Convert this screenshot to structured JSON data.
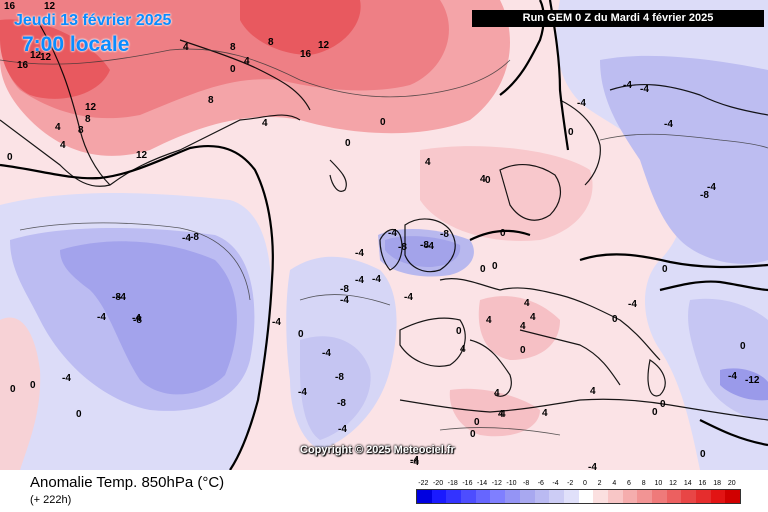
{
  "header": {
    "date": "Jeudi 13 février 2025",
    "time": "7:00 locale",
    "run": "Run GEM 0 Z du Mardi 4 février 2025"
  },
  "copyright": "Copyright © 2025 Meteociel.fr",
  "footer": {
    "parameter": "Anomalie Temp. 850hPa (°C)",
    "lead_time": "(+ 222h)"
  },
  "legend": {
    "labels": [
      "-22",
      "-20",
      "-18",
      "-16",
      "-14",
      "-12",
      "-10",
      "-8",
      "-6",
      "-4",
      "-2",
      "0",
      "2",
      "4",
      "6",
      "8",
      "10",
      "12",
      "14",
      "16",
      "18",
      "20"
    ],
    "colors": [
      "#0000e0",
      "#1a1aff",
      "#3333ff",
      "#4d4dff",
      "#6666ff",
      "#7f7fff",
      "#9494f5",
      "#a8a8f0",
      "#babaf2",
      "#ccccf5",
      "#e0e0fa",
      "#ffffff",
      "#fbe0e0",
      "#f8c6c6",
      "#f5adad",
      "#f29494",
      "#ef7a7a",
      "#ec6060",
      "#e84646",
      "#e52d2d",
      "#e21414",
      "#d00000"
    ]
  },
  "contour_labels": [
    {
      "text": "16"
    },
    {
      "text": "12"
    },
    {
      "text": "12"
    },
    {
      "text": "16"
    },
    {
      "text": "12"
    },
    {
      "text": "12"
    },
    {
      "text": "8"
    },
    {
      "text": "8"
    },
    {
      "text": "4"
    },
    {
      "text": "4"
    },
    {
      "text": "0"
    },
    {
      "text": "8"
    },
    {
      "text": "12"
    },
    {
      "text": "16"
    },
    {
      "text": "4"
    },
    {
      "text": "8"
    },
    {
      "text": "8"
    },
    {
      "text": "12"
    },
    {
      "text": "0"
    },
    {
      "text": "4"
    },
    {
      "text": "0"
    },
    {
      "text": "0"
    },
    {
      "text": "0"
    },
    {
      "text": "4"
    },
    {
      "text": "-4"
    },
    {
      "text": "-4"
    },
    {
      "text": "-4"
    },
    {
      "text": "-4"
    },
    {
      "text": "-8"
    },
    {
      "text": "-8"
    },
    {
      "text": "-8"
    },
    {
      "text": "-4"
    },
    {
      "text": "-8"
    },
    {
      "text": "-4"
    },
    {
      "text": "-4"
    },
    {
      "text": "-8"
    },
    {
      "text": "-8"
    },
    {
      "text": "-4"
    },
    {
      "text": "0"
    },
    {
      "text": "-4"
    },
    {
      "text": "-8"
    },
    {
      "text": "-4"
    },
    {
      "text": "-4"
    },
    {
      "text": "-4"
    },
    {
      "text": "-4"
    },
    {
      "text": "-8"
    },
    {
      "text": "-8"
    },
    {
      "text": "-4"
    },
    {
      "text": "-4"
    },
    {
      "text": "-4"
    },
    {
      "text": "-4"
    },
    {
      "text": "-4"
    },
    {
      "text": "0"
    },
    {
      "text": "0"
    },
    {
      "text": "4"
    },
    {
      "text": "4"
    },
    {
      "text": "4"
    },
    {
      "text": "4"
    },
    {
      "text": "0"
    },
    {
      "text": "0"
    },
    {
      "text": "4"
    },
    {
      "text": "4"
    },
    {
      "text": "0"
    },
    {
      "text": "0"
    },
    {
      "text": "4"
    },
    {
      "text": "4"
    },
    {
      "text": "4"
    },
    {
      "text": "0"
    },
    {
      "text": "0"
    },
    {
      "text": "-4"
    },
    {
      "text": "-4"
    },
    {
      "text": "-4"
    },
    {
      "text": "-4"
    },
    {
      "text": "-4"
    },
    {
      "text": "-8"
    },
    {
      "text": "-12"
    },
    {
      "text": "-4"
    },
    {
      "text": "0"
    },
    {
      "text": "0"
    },
    {
      "text": "0"
    },
    {
      "text": "-4"
    },
    {
      "text": "0"
    },
    {
      "text": "4"
    },
    {
      "text": "4"
    },
    {
      "text": "-4"
    },
    {
      "text": "0"
    },
    {
      "text": "0"
    },
    {
      "text": "0"
    },
    {
      "text": "4"
    },
    {
      "text": "0"
    },
    {
      "text": "0"
    }
  ]
}
